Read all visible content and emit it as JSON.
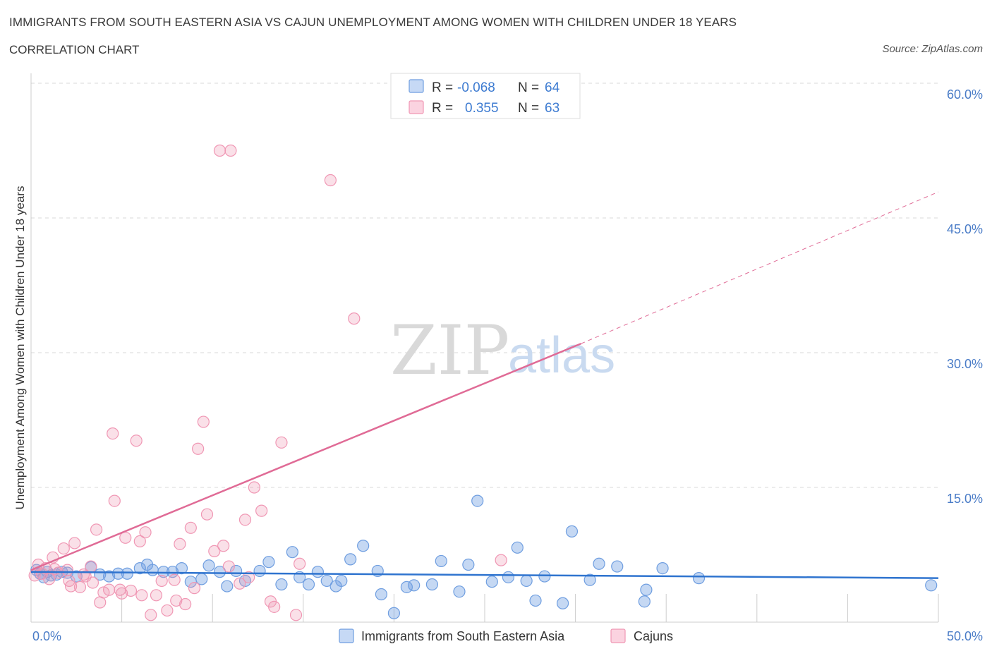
{
  "header": {
    "title": "IMMIGRANTS FROM SOUTH EASTERN ASIA VS CAJUN UNEMPLOYMENT AMONG WOMEN WITH CHILDREN UNDER 18 YEARS",
    "subtitle": "CORRELATION CHART",
    "source": "Source: ZipAtlas.com"
  },
  "watermark": {
    "zip": "ZIP",
    "atlas": "atlas"
  },
  "legend": {
    "rows": [
      {
        "r_label": "R =",
        "r_value": "-0.068",
        "n_label": "N =",
        "n_value": "64"
      },
      {
        "r_label": "R =",
        "r_value": "0.355",
        "n_label": "N =",
        "n_value": "63"
      }
    ]
  },
  "chart_data": {
    "type": "scatter",
    "title": "IMMIGRANTS FROM SOUTH EASTERN ASIA VS CAJUN UNEMPLOYMENT AMONG WOMEN WITH CHILDREN UNDER 18 YEARS",
    "xlabel": "",
    "ylabel": "Unemployment Among Women with Children Under 18 years",
    "xlim": [
      0,
      50
    ],
    "ylim": [
      0,
      60
    ],
    "x_tick_labels": [
      "0.0%",
      "50.0%"
    ],
    "y_ticks": [
      15,
      30,
      45,
      60
    ],
    "y_tick_labels": [
      "15.0%",
      "30.0%",
      "45.0%",
      "60.0%"
    ],
    "grid": true,
    "legend_position": "top-center",
    "colors": {
      "blue": "#6f9ee0",
      "pink": "#f097b4",
      "blue_line": "#2f74cf",
      "pink_line": "#e06b96"
    },
    "series": [
      {
        "name": "Immigrants from South Eastern Asia",
        "color": "#6f9ee0",
        "trend": {
          "x0": 0,
          "y0": 5.6,
          "x1": 50,
          "y1": 4.9
        },
        "points": [
          [
            0.3,
            5.8
          ],
          [
            0.5,
            5.4
          ],
          [
            0.7,
            5.0
          ],
          [
            0.9,
            5.6
          ],
          [
            1.1,
            5.2
          ],
          [
            1.4,
            5.3
          ],
          [
            1.7,
            5.6
          ],
          [
            2.0,
            5.5
          ],
          [
            2.5,
            5.1
          ],
          [
            3.3,
            6.1
          ],
          [
            3.8,
            5.3
          ],
          [
            4.3,
            5.1
          ],
          [
            4.8,
            5.4
          ],
          [
            5.3,
            5.4
          ],
          [
            6.0,
            6.0
          ],
          [
            6.4,
            6.4
          ],
          [
            6.7,
            5.8
          ],
          [
            7.3,
            5.6
          ],
          [
            7.8,
            5.6
          ],
          [
            8.3,
            6.0
          ],
          [
            8.8,
            4.5
          ],
          [
            9.4,
            4.8
          ],
          [
            9.8,
            6.3
          ],
          [
            10.4,
            5.6
          ],
          [
            10.8,
            4.0
          ],
          [
            11.3,
            5.7
          ],
          [
            11.8,
            4.6
          ],
          [
            12.6,
            5.7
          ],
          [
            13.1,
            6.7
          ],
          [
            13.8,
            4.2
          ],
          [
            14.4,
            7.8
          ],
          [
            14.8,
            5.0
          ],
          [
            15.3,
            4.2
          ],
          [
            15.8,
            5.6
          ],
          [
            16.3,
            4.6
          ],
          [
            16.8,
            4.0
          ],
          [
            17.1,
            4.6
          ],
          [
            17.6,
            7.0
          ],
          [
            18.3,
            8.5
          ],
          [
            19.1,
            5.7
          ],
          [
            19.3,
            3.1
          ],
          [
            20.0,
            1.0
          ],
          [
            20.7,
            3.9
          ],
          [
            21.1,
            4.1
          ],
          [
            22.1,
            4.2
          ],
          [
            22.6,
            6.8
          ],
          [
            23.6,
            3.4
          ],
          [
            24.1,
            6.4
          ],
          [
            24.6,
            13.5
          ],
          [
            25.4,
            4.5
          ],
          [
            26.3,
            5.0
          ],
          [
            26.8,
            8.3
          ],
          [
            27.3,
            4.6
          ],
          [
            27.8,
            2.4
          ],
          [
            28.3,
            5.1
          ],
          [
            29.3,
            2.1
          ],
          [
            29.8,
            10.1
          ],
          [
            30.8,
            4.7
          ],
          [
            31.3,
            6.5
          ],
          [
            32.3,
            6.2
          ],
          [
            33.8,
            2.3
          ],
          [
            33.9,
            3.6
          ],
          [
            34.8,
            6.0
          ],
          [
            36.8,
            4.9
          ],
          [
            49.6,
            4.1
          ]
        ]
      },
      {
        "name": "Cajuns",
        "color": "#f097b4",
        "trend": {
          "x0": 0,
          "y0": 5.8,
          "x1": 30.3,
          "y1": 31.0,
          "dash_x1": 50,
          "dash_y1": 47.9
        },
        "points": [
          [
            0.2,
            5.2
          ],
          [
            0.4,
            6.4
          ],
          [
            0.6,
            5.4
          ],
          [
            0.8,
            6.0
          ],
          [
            1.0,
            4.8
          ],
          [
            1.2,
            7.2
          ],
          [
            1.5,
            5.5
          ],
          [
            1.8,
            8.2
          ],
          [
            2.1,
            4.6
          ],
          [
            2.4,
            8.8
          ],
          [
            2.7,
            3.9
          ],
          [
            3.0,
            5.1
          ],
          [
            3.3,
            6.2
          ],
          [
            3.6,
            10.3
          ],
          [
            3.8,
            2.2
          ],
          [
            4.0,
            3.3
          ],
          [
            4.3,
            3.6
          ],
          [
            4.6,
            13.5
          ],
          [
            4.9,
            3.6
          ],
          [
            5.2,
            9.4
          ],
          [
            5.5,
            3.5
          ],
          [
            5.8,
            20.2
          ],
          [
            6.0,
            9.0
          ],
          [
            6.3,
            10.0
          ],
          [
            6.6,
            0.8
          ],
          [
            6.9,
            3.0
          ],
          [
            7.2,
            4.6
          ],
          [
            7.5,
            1.3
          ],
          [
            7.9,
            4.7
          ],
          [
            8.2,
            8.7
          ],
          [
            8.5,
            2.0
          ],
          [
            8.8,
            10.5
          ],
          [
            9.2,
            19.3
          ],
          [
            9.5,
            22.3
          ],
          [
            9.7,
            12.0
          ],
          [
            10.1,
            7.9
          ],
          [
            10.4,
            52.5
          ],
          [
            10.6,
            8.5
          ],
          [
            10.9,
            6.2
          ],
          [
            11.0,
            52.5
          ],
          [
            11.8,
            11.4
          ],
          [
            12.3,
            15.0
          ],
          [
            12.7,
            12.4
          ],
          [
            13.2,
            2.3
          ],
          [
            13.4,
            1.7
          ],
          [
            13.8,
            20.0
          ],
          [
            14.6,
            0.8
          ],
          [
            14.8,
            6.5
          ],
          [
            16.5,
            49.2
          ],
          [
            17.8,
            33.8
          ],
          [
            4.5,
            21.0
          ],
          [
            1.3,
            5.9
          ],
          [
            2.0,
            5.8
          ],
          [
            2.2,
            4.0
          ],
          [
            2.9,
            5.3
          ],
          [
            3.4,
            4.4
          ],
          [
            5.0,
            3.2
          ],
          [
            6.1,
            3.0
          ],
          [
            8.0,
            2.4
          ],
          [
            11.5,
            4.3
          ],
          [
            12.0,
            5.0
          ],
          [
            9.0,
            3.8
          ],
          [
            25.9,
            6.9
          ]
        ]
      }
    ]
  },
  "bottom_legend": {
    "items": [
      {
        "label": "Immigrants from South Eastern Asia"
      },
      {
        "label": "Cajuns"
      }
    ]
  }
}
